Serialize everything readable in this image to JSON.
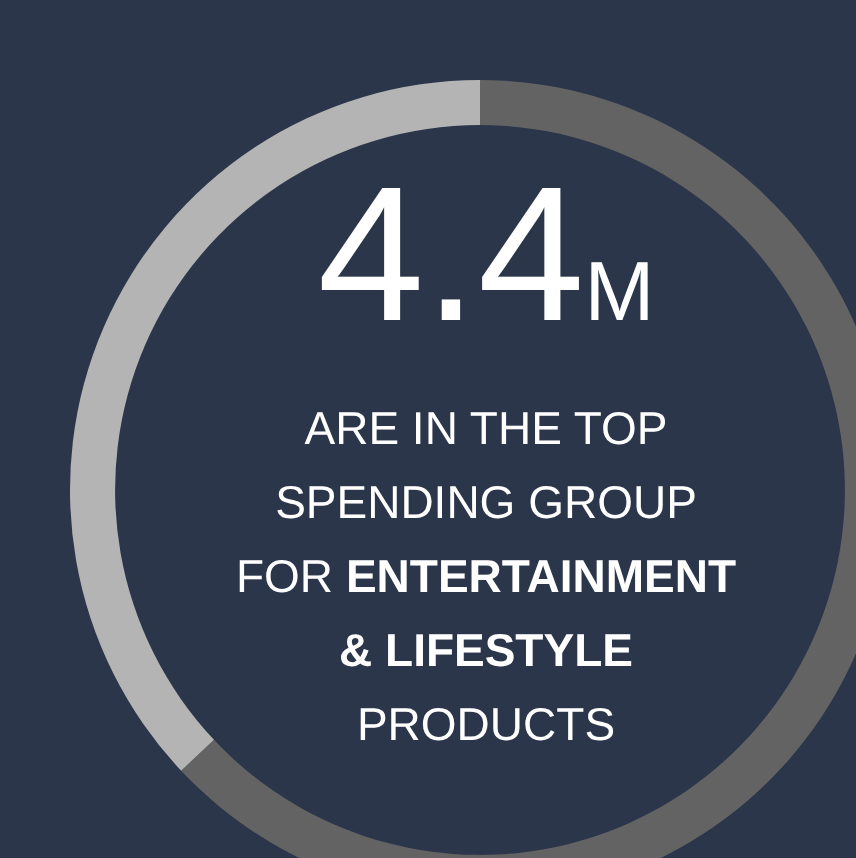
{
  "chart_data": {
    "type": "donut",
    "title": "4.4",
    "subtitle": "M",
    "categories": [
      null,
      null
    ],
    "values": [
      63,
      37
    ],
    "colors": [
      "#636363",
      "#b4b4b4"
    ],
    "annotations": [
      "ARE IN THE TOP SPENDING GROUP FOR",
      "ENTERTAINMENT & LIFESTYLE",
      "PRODUCTS"
    ],
    "legend": false
  }
}
